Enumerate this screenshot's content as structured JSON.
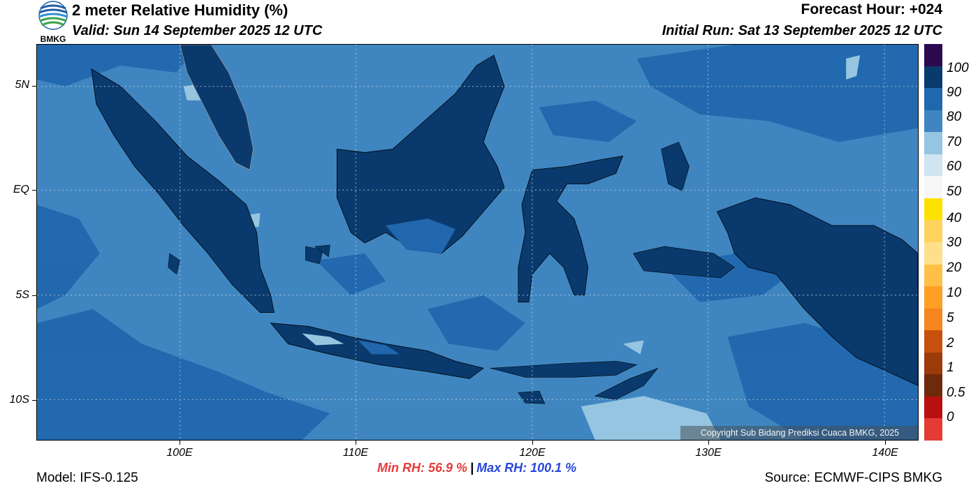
{
  "header": {
    "title": "2 meter Relative Humidity (%)",
    "valid": "Valid: Sun 14 September 2025 12 UTC",
    "forecast_hour": "Forecast Hour: +024",
    "initial_run": "Initial Run: Sat 13 September 2025 12 UTC"
  },
  "logo": {
    "text": "BMKG",
    "icon": "bmkg-logo-icon"
  },
  "map": {
    "lat_labels": [
      "5N",
      "EQ",
      "5S",
      "10S"
    ],
    "lon_labels": [
      "100E",
      "110E",
      "120E",
      "130E",
      "140E"
    ],
    "copyright": "Copyright Sub Bidang Prediksi Cuaca BMKG, 2025",
    "colors": {
      "ocean": "#3f86c1",
      "land_humid": "#0a3a6d",
      "coast_band": "#2167ae",
      "dry_patch": "#95c5e0"
    }
  },
  "colorbar": {
    "labels": [
      "100",
      "90",
      "80",
      "70",
      "60",
      "50",
      "40",
      "30",
      "20",
      "10",
      "5",
      "2",
      "1",
      "0.5",
      "0"
    ],
    "colors": [
      "#2d0a50",
      "#0a3a6d",
      "#2167ae",
      "#3f86c1",
      "#95c5e0",
      "#d0e4f1",
      "#f6f6f6",
      "#ffe100",
      "#ffd35e",
      "#ffe08a",
      "#ffc048",
      "#ff9f24",
      "#f6851e",
      "#c8500f",
      "#9c3a09",
      "#6e2a0a",
      "#b81010",
      "#e43c34"
    ]
  },
  "footer": {
    "model": "Model: IFS-0.125",
    "min_rh": "Min RH:  56.9 %",
    "separator": "|",
    "max_rh": "Max RH: 100.1 %",
    "source": "Source: ECMWF-CIPS BMKG"
  }
}
